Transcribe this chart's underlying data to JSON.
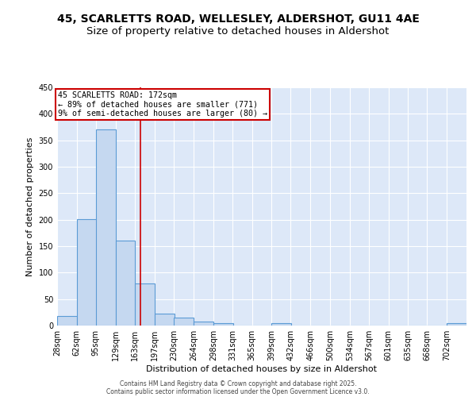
{
  "title1": "45, SCARLETTS ROAD, WELLESLEY, ALDERSHOT, GU11 4AE",
  "title2": "Size of property relative to detached houses in Aldershot",
  "xlabel": "Distribution of detached houses by size in Aldershot",
  "ylabel": "Number of detached properties",
  "bin_labels": [
    "28sqm",
    "62sqm",
    "95sqm",
    "129sqm",
    "163sqm",
    "197sqm",
    "230sqm",
    "264sqm",
    "298sqm",
    "331sqm",
    "365sqm",
    "399sqm",
    "432sqm",
    "466sqm",
    "500sqm",
    "534sqm",
    "567sqm",
    "601sqm",
    "635sqm",
    "668sqm",
    "702sqm"
  ],
  "bin_edges": [
    28,
    62,
    95,
    129,
    163,
    197,
    230,
    264,
    298,
    331,
    365,
    399,
    432,
    466,
    500,
    534,
    567,
    601,
    635,
    668,
    702
  ],
  "bar_heights": [
    18,
    201,
    370,
    160,
    80,
    22,
    15,
    7,
    4,
    0,
    0,
    5,
    0,
    0,
    0,
    0,
    0,
    0,
    0,
    0,
    4
  ],
  "bar_color": "#c5d8f0",
  "bar_edge_color": "#5b9bd5",
  "red_line_x": 172,
  "annotation_line1": "45 SCARLETTS ROAD: 172sqm",
  "annotation_line2": "← 89% of detached houses are smaller (771)",
  "annotation_line3": "9% of semi-detached houses are larger (80) →",
  "annotation_box_color": "#ffffff",
  "annotation_box_edge_color": "#cc0000",
  "ylim": [
    0,
    450
  ],
  "yticks": [
    0,
    50,
    100,
    150,
    200,
    250,
    300,
    350,
    400,
    450
  ],
  "footer1": "Contains HM Land Registry data © Crown copyright and database right 2025.",
  "footer2": "Contains public sector information licensed under the Open Government Licence v3.0.",
  "bg_color": "#dde8f8",
  "grid_color": "#ffffff",
  "title1_fontsize": 10,
  "title2_fontsize": 9.5
}
